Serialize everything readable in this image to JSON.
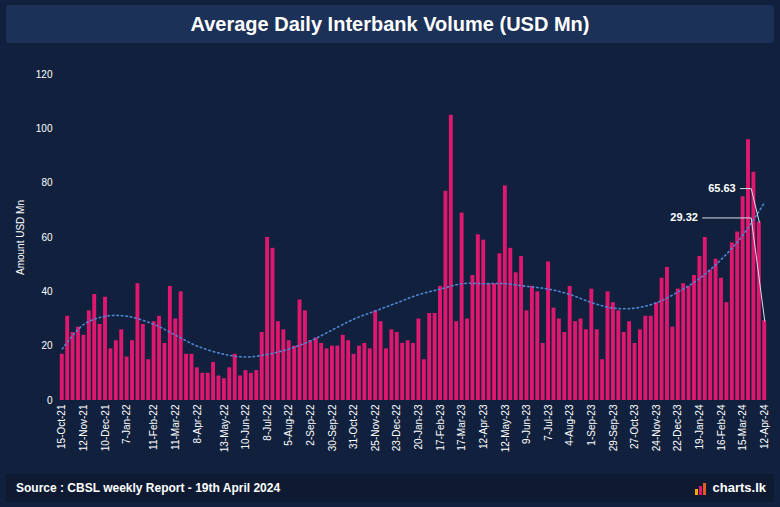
{
  "chart_data": {
    "type": "bar",
    "title": "Average Daily Interbank Volume (USD Mn)",
    "y_label": "Amount USD Mn",
    "source": "Source : CBSL weekly Report - 19th April 2024",
    "watermark": "charts.lk",
    "color": "#e0176f",
    "categories": [
      "15-Oct-21",
      null,
      null,
      null,
      "12-Nov-21",
      null,
      null,
      null,
      "10-Dec-21",
      null,
      null,
      null,
      "7-Jan-22",
      null,
      null,
      null,
      null,
      "11-Feb-22",
      null,
      null,
      null,
      "11-Mar-22",
      null,
      null,
      null,
      "8-Apr-22",
      null,
      null,
      null,
      null,
      "13-May-22",
      null,
      null,
      null,
      "10-Jun-22",
      null,
      null,
      null,
      "8-Jul-22",
      null,
      null,
      null,
      "5-Aug-22",
      null,
      null,
      null,
      "2-Sep-22",
      null,
      null,
      null,
      "30-Sep-22",
      null,
      null,
      null,
      "31-Oct-22",
      null,
      null,
      null,
      "25-Nov-22",
      null,
      null,
      null,
      "23-Dec-22",
      null,
      null,
      null,
      "20-Jan-23",
      null,
      null,
      null,
      "17-Feb-23",
      null,
      null,
      null,
      "17-Mar-23",
      null,
      null,
      null,
      "12-Apr-23",
      null,
      null,
      null,
      "12-May-23",
      null,
      null,
      null,
      "9-Jun-23",
      null,
      null,
      null,
      "7-Jul-23",
      null,
      null,
      null,
      "4-Aug-23",
      null,
      null,
      null,
      "1-Sep-23",
      null,
      null,
      null,
      "29-Sep-23",
      null,
      null,
      null,
      "27-Oct-23",
      null,
      null,
      null,
      "24-Nov-23",
      null,
      null,
      null,
      "22-Dec-23",
      null,
      null,
      null,
      "19-Jan-24",
      null,
      null,
      null,
      "16-Feb-24",
      null,
      null,
      null,
      "15-Mar-24",
      null,
      null,
      null,
      "12-Apr-24"
    ],
    "values": [
      17,
      31,
      25,
      27,
      24,
      33,
      39,
      28,
      38,
      19,
      22,
      26,
      16,
      22,
      43,
      28,
      15,
      29,
      31,
      21,
      42,
      30,
      40,
      17,
      17,
      12,
      10,
      10,
      14,
      9,
      8,
      12,
      17,
      9,
      11,
      10,
      11,
      25,
      60,
      56,
      29,
      26,
      22,
      20,
      37,
      33,
      22,
      23,
      21,
      19,
      20,
      20,
      24,
      22,
      17,
      20,
      21,
      19,
      33,
      29,
      19,
      26,
      25,
      21,
      22,
      21,
      30,
      15,
      32,
      32,
      42,
      77,
      105,
      29,
      69,
      30,
      46,
      61,
      59,
      43,
      43,
      54,
      79,
      56,
      47,
      53,
      33,
      42,
      40,
      21,
      51,
      34,
      30,
      25,
      42,
      29,
      30,
      26,
      41,
      26,
      15,
      40,
      36,
      33,
      25,
      29,
      21,
      26,
      31,
      31,
      36,
      45,
      49,
      27,
      41,
      43,
      42,
      46,
      53,
      60,
      48,
      52,
      45,
      36,
      58,
      62,
      75,
      96,
      84,
      65.63,
      29.32
    ],
    "ylim": [
      0,
      120
    ],
    "yticks": [
      0,
      20,
      40,
      60,
      80,
      100,
      120
    ],
    "trend": {
      "type": "line",
      "line_style": "dotted",
      "color": "#4f86d4",
      "x": [
        "15-Oct-21",
        "12-Nov-21",
        "10-Dec-21",
        "7-Jan-22",
        "11-Feb-22",
        "11-Mar-22",
        "8-Apr-22",
        "13-May-22",
        "10-Jun-22",
        "8-Jul-22",
        "5-Aug-22",
        "2-Sep-22",
        "30-Sep-22",
        "31-Oct-22",
        "25-Nov-22",
        "23-Dec-22",
        "20-Jan-23",
        "17-Feb-23",
        "17-Mar-23",
        "12-Apr-23",
        "12-May-23",
        "9-Jun-23",
        "7-Jul-23",
        "4-Aug-23",
        "1-Sep-23",
        "29-Sep-23",
        "27-Oct-23",
        "24-Nov-23",
        "22-Dec-23",
        "19-Jan-24",
        "16-Feb-24",
        "15-Mar-24",
        "12-Apr-24"
      ],
      "values": [
        19,
        28,
        31,
        31,
        28,
        24,
        20,
        17,
        16,
        17,
        19,
        22,
        26,
        30,
        33,
        36,
        39,
        41,
        43,
        43,
        43,
        42,
        41,
        39,
        36,
        34,
        34,
        36,
        40,
        45,
        52,
        61,
        73
      ]
    },
    "annotations": [
      {
        "text": "65.63",
        "value": 65.63
      },
      {
        "text": "29.32",
        "value": 29.32
      }
    ]
  }
}
